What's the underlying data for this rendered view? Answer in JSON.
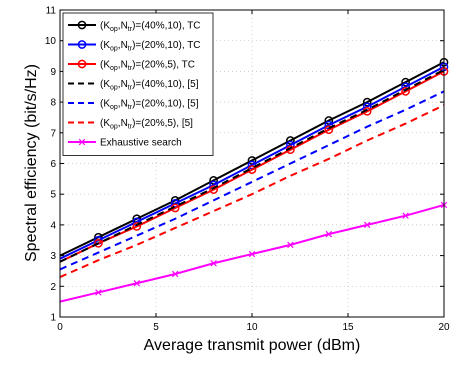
{
  "chart_data": {
    "type": "line",
    "xlabel": "Average transmit power (dBm)",
    "ylabel": "Spectral efficiency (bit/s/Hz)",
    "xlim": [
      0,
      20
    ],
    "ylim": [
      1,
      11
    ],
    "xticks": [
      0,
      5,
      10,
      15,
      20
    ],
    "yticks": [
      1,
      2,
      3,
      4,
      5,
      6,
      7,
      8,
      9,
      10,
      11
    ],
    "grid": true,
    "legend_position": "top-left",
    "x": [
      0,
      2,
      4,
      6,
      8,
      10,
      12,
      14,
      16,
      18,
      20
    ],
    "series": [
      {
        "name": "(K_op,N_tr)=(40%,10), TC",
        "label_parts": [
          "(K",
          "op",
          ",N",
          "tr",
          ")=(40%,10), TC"
        ],
        "color": "#000000",
        "dash": "solid",
        "marker": "circle",
        "values": [
          3.0,
          3.6,
          4.2,
          4.8,
          5.45,
          6.1,
          6.75,
          7.4,
          8.0,
          8.65,
          9.3
        ]
      },
      {
        "name": "(K_op,N_tr)=(20%,10), TC",
        "label_parts": [
          "(K",
          "op",
          ",N",
          "tr",
          ")=(20%,10), TC"
        ],
        "color": "#0000ff",
        "dash": "solid",
        "marker": "circle",
        "values": [
          2.9,
          3.5,
          4.1,
          4.7,
          5.3,
          5.95,
          6.6,
          7.25,
          7.85,
          8.5,
          9.15
        ]
      },
      {
        "name": "(K_op,N_tr)=(20%,5), TC",
        "label_parts": [
          "(K",
          "op",
          ",N",
          "tr",
          ")=(20%,5), TC"
        ],
        "color": "#ff0000",
        "dash": "solid",
        "marker": "circle",
        "values": [
          2.8,
          3.4,
          3.95,
          4.55,
          5.15,
          5.8,
          6.45,
          7.1,
          7.7,
          8.35,
          9.0
        ]
      },
      {
        "name": "(K_op,N_tr)=(40%,10), [5]",
        "label_parts": [
          "(K",
          "op",
          ",N",
          "tr",
          ")=(40%,10), [5]"
        ],
        "color": "#000000",
        "dash": "dashed",
        "marker": "none",
        "values": [
          2.8,
          3.4,
          4.0,
          4.6,
          5.2,
          5.85,
          6.5,
          7.15,
          7.75,
          8.4,
          9.05
        ]
      },
      {
        "name": "(K_op,N_tr)=(20%,10), [5]",
        "label_parts": [
          "(K",
          "op",
          ",N",
          "tr",
          ")=(20%,10), [5]"
        ],
        "color": "#0000ff",
        "dash": "dashed",
        "marker": "none",
        "values": [
          2.55,
          3.1,
          3.65,
          4.2,
          4.8,
          5.4,
          6.0,
          6.6,
          7.2,
          7.75,
          8.35
        ]
      },
      {
        "name": "(K_op,N_tr)=(20%,5), [5]",
        "label_parts": [
          "(K",
          "op",
          ",N",
          "tr",
          ")=(20%,5), [5]"
        ],
        "color": "#ff0000",
        "dash": "dashed",
        "marker": "none",
        "values": [
          2.3,
          2.85,
          3.35,
          3.9,
          4.45,
          5.0,
          5.6,
          6.15,
          6.75,
          7.3,
          7.9
        ]
      },
      {
        "name": "Exhaustive search",
        "label_parts": [
          "Exhaustive search"
        ],
        "color": "#ff00ff",
        "dash": "solid",
        "marker": "x",
        "values": [
          1.5,
          1.8,
          2.1,
          2.4,
          2.75,
          3.05,
          3.35,
          3.7,
          4.0,
          4.3,
          4.65
        ]
      }
    ]
  }
}
